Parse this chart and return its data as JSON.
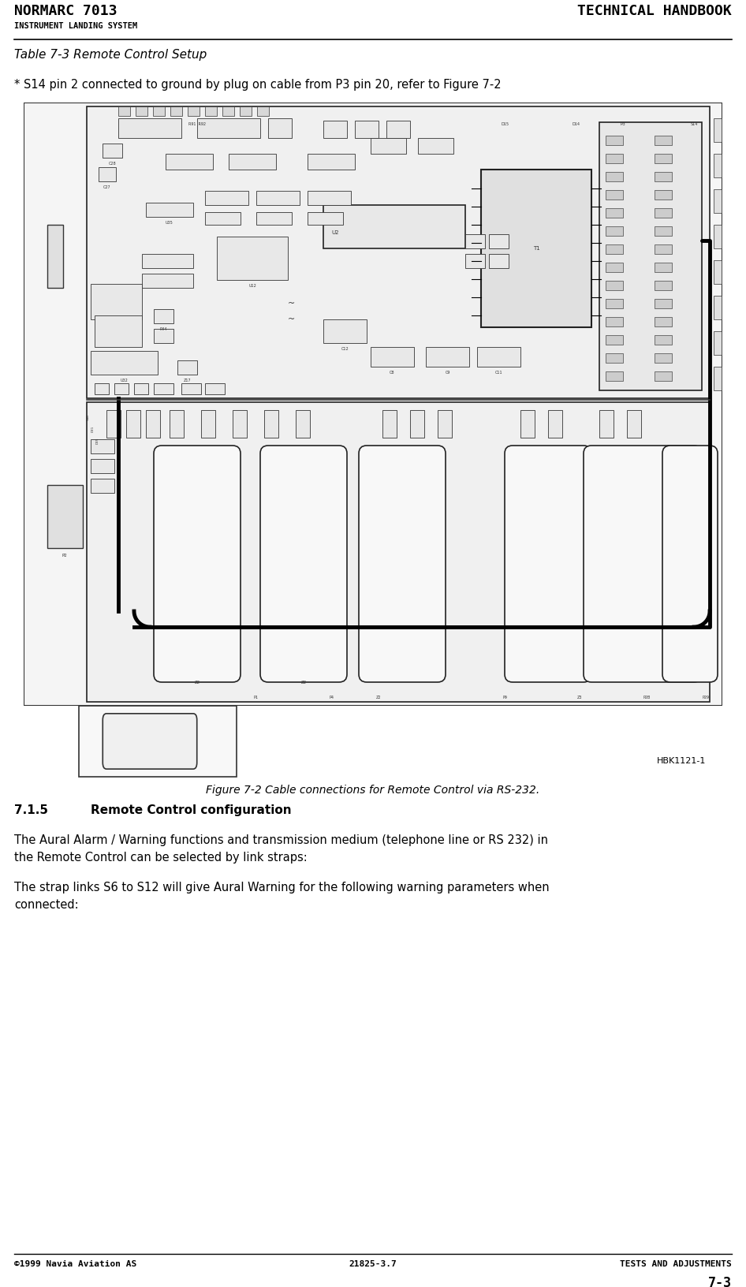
{
  "page_width": 9.46,
  "page_height": 16.32,
  "dpi": 100,
  "bg_color": "#ffffff",
  "header_left": "NORMARC 7013",
  "header_right": "TECHNICAL HANDBOOK",
  "header_sub_left": "INSTRUMENT LANDING SYSTEM",
  "header_font_size": 13,
  "header_sub_font_size": 7.5,
  "footer_left": "©1999 Navia Aviation AS",
  "footer_center": "21825-3.7",
  "footer_right": "TESTS AND ADJUSTMENTS",
  "footer_page": "7-3",
  "footer_font_size": 8,
  "table_title": "Table 7-3 Remote Control Setup",
  "table_title_font_size": 11,
  "footnote": "* S14 pin 2 connected to ground by plug on cable from P3 pin 20, refer to Figure 7-2",
  "footnote_font_size": 10.5,
  "figure_caption": "Figure 7-2 Cable connections for Remote Control via RS-232.",
  "figure_caption_font_size": 10,
  "figure_label": "HBK1121-1",
  "figure_label_font_size": 8,
  "section_heading_num": "7.1.5",
  "section_heading_text": "Remote Control configuration",
  "section_heading_font_size": 11,
  "para1_line1": "The Aural Alarm / Warning functions and transmission medium (telephone line or RS 232) in",
  "para1_line2": "the Remote Control can be selected by link straps:",
  "para2_line1": "The strap links S6 to S12 will give Aural Warning for the following warning parameters when",
  "para2_line2": "connected:",
  "para_font_size": 10.5
}
